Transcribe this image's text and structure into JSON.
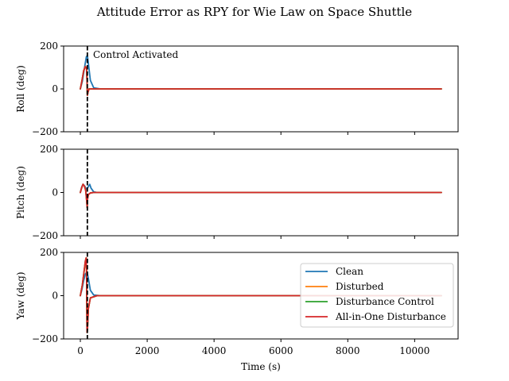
{
  "chart_data": {
    "type": "line",
    "title": "Attitude Error as RPY for Wie Law on Space Shuttle",
    "xlabel": "Time (s)",
    "xlim": [
      -500,
      11300
    ],
    "xticks": [
      0,
      2000,
      4000,
      6000,
      8000,
      10000
    ],
    "xtick_labels": [
      "0",
      "2000",
      "4000",
      "6000",
      "8000",
      "10000"
    ],
    "shared_x": true,
    "grid": false,
    "legend_placement": "lower-right of third subplot",
    "legend": [
      "Clean",
      "Disturbed",
      "Disturbance Control",
      "All-in-One Disturbance"
    ],
    "vline": {
      "x": 210,
      "style": "dashed",
      "color": "#000000"
    },
    "annotation": {
      "text": "Control Activated",
      "x": 380,
      "y": 160,
      "subplot": 0
    },
    "series_colors": {
      "Clean": "#1f77b4",
      "Disturbed": "#ff7f0e",
      "Disturbance Control": "#2ca02c",
      "All-in-One Disturbance": "#d62728"
    },
    "subplots": [
      {
        "ylabel": "Roll (deg)",
        "ylim": [
          -200,
          200
        ],
        "yticks": [
          -200,
          0,
          200
        ],
        "ytick_labels": [
          "−200",
          "0",
          "200"
        ],
        "series": [
          {
            "name": "Clean",
            "x": [
              0,
              60,
              120,
              180,
              210,
              240,
              300,
              400,
              600,
              1000,
              4000,
              8000,
              10800
            ],
            "y": [
              0,
              35,
              95,
              150,
              155,
              120,
              40,
              5,
              0,
              0,
              0,
              0,
              0
            ]
          },
          {
            "name": "Disturbed",
            "x": [
              0,
              50,
              100,
              150,
              185,
              200,
              210,
              230,
              260,
              330,
              500,
              1000,
              10800
            ],
            "y": [
              0,
              40,
              85,
              105,
              95,
              40,
              -30,
              -15,
              0,
              0,
              0,
              0,
              0
            ]
          },
          {
            "name": "Disturbance Control",
            "x": [
              0,
              50,
              100,
              150,
              185,
              200,
              210,
              230,
              260,
              330,
              500,
              1000,
              10800
            ],
            "y": [
              0,
              40,
              85,
              105,
              95,
              40,
              -30,
              -15,
              0,
              0,
              0,
              0,
              0
            ]
          },
          {
            "name": "All-in-One Disturbance",
            "x": [
              0,
              50,
              100,
              150,
              185,
              200,
              210,
              230,
              260,
              330,
              500,
              1000,
              10800
            ],
            "y": [
              0,
              40,
              85,
              105,
              95,
              40,
              -30,
              -15,
              0,
              0,
              0,
              0,
              0
            ]
          }
        ]
      },
      {
        "ylabel": "Pitch (deg)",
        "ylim": [
          -200,
          200
        ],
        "yticks": [
          -200,
          0,
          200
        ],
        "ytick_labels": [
          "−200",
          "0",
          "200"
        ],
        "series": [
          {
            "name": "Clean",
            "x": [
              0,
              40,
              80,
              130,
              180,
              220,
              280,
              320,
              400,
              500,
              800,
              10800
            ],
            "y": [
              0,
              25,
              38,
              30,
              15,
              22,
              38,
              20,
              3,
              0,
              0,
              0
            ]
          },
          {
            "name": "Disturbed",
            "x": [
              0,
              40,
              80,
              120,
              160,
              190,
              205,
              215,
              240,
              300,
              400,
              600,
              10800
            ],
            "y": [
              0,
              22,
              38,
              30,
              10,
              -40,
              -70,
              -30,
              -10,
              -2,
              0,
              0,
              0
            ]
          },
          {
            "name": "Disturbance Control",
            "x": [
              0,
              40,
              80,
              120,
              160,
              190,
              205,
              215,
              240,
              300,
              400,
              600,
              10800
            ],
            "y": [
              0,
              22,
              38,
              30,
              10,
              -40,
              -70,
              -30,
              -10,
              -2,
              0,
              0,
              0
            ]
          },
          {
            "name": "All-in-One Disturbance",
            "x": [
              0,
              40,
              80,
              120,
              160,
              190,
              205,
              215,
              240,
              300,
              400,
              600,
              10800
            ],
            "y": [
              0,
              22,
              38,
              30,
              10,
              -40,
              -70,
              -30,
              -10,
              -2,
              0,
              0,
              0
            ]
          }
        ]
      },
      {
        "ylabel": "Yaw (deg)",
        "ylim": [
          -200,
          200
        ],
        "yticks": [
          -200,
          0,
          200
        ],
        "ytick_labels": [
          "−200",
          "0",
          "200"
        ],
        "series": [
          {
            "name": "Clean",
            "x": [
              0,
              50,
              100,
              150,
              200,
              240,
              300,
              400,
              600,
              1000,
              10800
            ],
            "y": [
              0,
              30,
              70,
              100,
              110,
              80,
              25,
              3,
              0,
              0,
              0
            ]
          },
          {
            "name": "Disturbed",
            "x": [
              0,
              60,
              110,
              150,
              175,
              185,
              192,
              200,
              215,
              240,
              300,
              500,
              1000,
              10800
            ],
            "y": [
              0,
              50,
              110,
              160,
              175,
              120,
              -20,
              -170,
              -150,
              -60,
              -10,
              0,
              0,
              0
            ]
          },
          {
            "name": "Disturbance Control",
            "x": [
              0,
              60,
              110,
              150,
              175,
              185,
              192,
              200,
              215,
              240,
              300,
              500,
              1000,
              10800
            ],
            "y": [
              0,
              50,
              110,
              160,
              175,
              120,
              -20,
              -170,
              -150,
              -60,
              -10,
              0,
              0,
              0
            ]
          },
          {
            "name": "All-in-One Disturbance",
            "x": [
              0,
              60,
              110,
              150,
              175,
              185,
              192,
              200,
              215,
              240,
              300,
              500,
              1000,
              10800
            ],
            "y": [
              0,
              50,
              110,
              160,
              175,
              120,
              -20,
              -170,
              -150,
              -60,
              -10,
              0,
              0,
              0
            ]
          }
        ]
      }
    ]
  }
}
